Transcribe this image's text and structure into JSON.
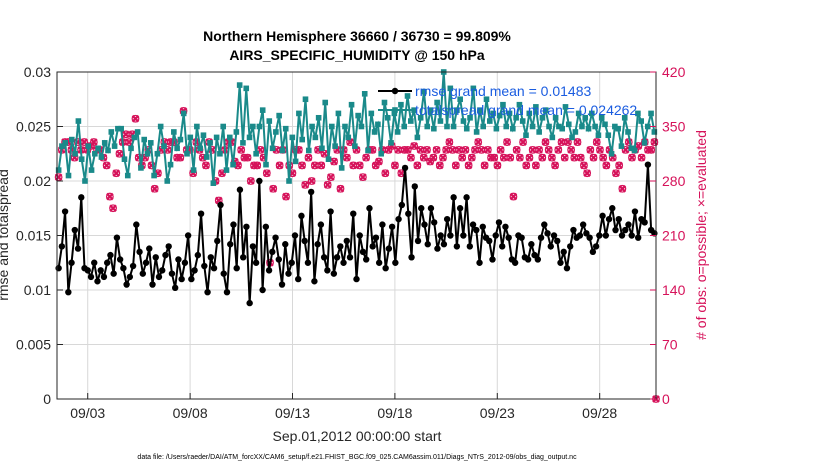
{
  "chart_data": {
    "type": "line",
    "title": [
      "Northern Hemisphere 36660 / 36730 = 99.809%",
      "AIRS_SPECIFIC_HUMIDITY @ 150 hPa"
    ],
    "xlabel": "Sep.01,2012 00:00:00 start",
    "ylabel": "rmse and totalspread",
    "ylabel2": "# of obs: o=possible; ×=evaluated",
    "footnote": "data file: /Users/raeder/DAI/ATM_forcXX/CAM6_setup/f.e21.FHIST_BGC.f09_025.CAM6assim.011/Diags_NTrS_2012-09/obs_diag_output.nc",
    "x_ticks": [
      "09/03",
      "09/08",
      "09/13",
      "09/18",
      "09/23",
      "09/28"
    ],
    "x_tick_days": [
      3,
      8,
      13,
      18,
      23,
      28
    ],
    "xlim_days": [
      1.5,
      30.75
    ],
    "ylim": [
      0,
      0.03
    ],
    "y_ticks": [
      "0",
      "0.005",
      "0.01",
      "0.015",
      "0.02",
      "0.025",
      "0.03"
    ],
    "ylim2": [
      0,
      420
    ],
    "y2_ticks": [
      "0",
      "70",
      "140",
      "210",
      "280",
      "350",
      "420"
    ],
    "grid": true,
    "legend_position": "top-right",
    "series": [
      {
        "name": "rmse grand mean = 0.01483",
        "color": "#000000",
        "axis": "left",
        "marker": "filled-circle",
        "values": [
          0.012,
          0.014,
          0.0172,
          0.0098,
          0.0125,
          0.0155,
          0.0138,
          0.0185,
          0.012,
          0.0118,
          0.0112,
          0.0125,
          0.0108,
          0.0118,
          0.0112,
          0.0125,
          0.0132,
          0.0115,
          0.0148,
          0.0128,
          0.012,
          0.0105,
          0.0112,
          0.0122,
          0.016,
          0.0135,
          0.0115,
          0.0125,
          0.0138,
          0.0105,
          0.013,
          0.0112,
          0.0118,
          0.0132,
          0.014,
          0.0115,
          0.0102,
          0.0128,
          0.011,
          0.0125,
          0.015,
          0.011,
          0.0118,
          0.0132,
          0.017,
          0.0122,
          0.0098,
          0.013,
          0.012,
          0.0145,
          0.0178,
          0.0115,
          0.0098,
          0.0142,
          0.016,
          0.012,
          0.0192,
          0.013,
          0.0158,
          0.0088,
          0.014,
          0.0125,
          0.02,
          0.01,
          0.0158,
          0.0118,
          0.0135,
          0.0148,
          0.0128,
          0.0105,
          0.0142,
          0.0115,
          0.0125,
          0.015,
          0.011,
          0.0168,
          0.0145,
          0.0125,
          0.019,
          0.0108,
          0.0142,
          0.016,
          0.013,
          0.0118,
          0.0172,
          0.0115,
          0.013,
          0.014,
          0.0125,
          0.0145,
          0.013,
          0.017,
          0.011,
          0.015,
          0.0135,
          0.0128,
          0.0175,
          0.014,
          0.0148,
          0.0125,
          0.016,
          0.012,
          0.0138,
          0.0158,
          0.0125,
          0.0165,
          0.0178,
          0.0212,
          0.017,
          0.013,
          0.0195,
          0.0145,
          0.0175,
          0.016,
          0.0142,
          0.0175,
          0.0162,
          0.0138,
          0.015,
          0.0142,
          0.0165,
          0.015,
          0.0185,
          0.014,
          0.0175,
          0.015,
          0.0185,
          0.014,
          0.016,
          0.0155,
          0.0125,
          0.0158,
          0.0148,
          0.0145,
          0.0128,
          0.015,
          0.0162,
          0.014,
          0.0158,
          0.0148,
          0.0128,
          0.0125,
          0.015,
          0.0148,
          0.013,
          0.0128,
          0.0142,
          0.0132,
          0.0128,
          0.0148,
          0.016,
          0.0152,
          0.014,
          0.015,
          0.0145,
          0.0125,
          0.0135,
          0.012,
          0.014,
          0.0155,
          0.0148,
          0.015,
          0.016,
          0.0152,
          0.0148,
          0.0135,
          0.014,
          0.015,
          0.0168,
          0.015,
          0.0165,
          0.0175,
          0.0155,
          0.0165,
          0.015,
          0.0155,
          0.016,
          0.015,
          0.0172,
          0.0148,
          0.0165,
          0.0162,
          0.0215,
          0.0155,
          0.0152
        ]
      },
      {
        "name": "totalspread grand mean = 0.024262",
        "color": "#1a8a8a",
        "axis": "left",
        "marker": "filled-square",
        "values": [
          0.021,
          0.0232,
          0.0235,
          0.0205,
          0.0238,
          0.0225,
          0.0255,
          0.022,
          0.02,
          0.0232,
          0.021,
          0.0225,
          0.023,
          0.0222,
          0.0235,
          0.0228,
          0.0245,
          0.0232,
          0.0248,
          0.0248,
          0.022,
          0.0205,
          0.023,
          0.024,
          0.0245,
          0.0212,
          0.0238,
          0.0225,
          0.0235,
          0.0205,
          0.0225,
          0.025,
          0.0232,
          0.02,
          0.0215,
          0.0245,
          0.023,
          0.0238,
          0.0262,
          0.0225,
          0.024,
          0.021,
          0.025,
          0.023,
          0.0242,
          0.0222,
          0.0235,
          0.0198,
          0.024,
          0.0225,
          0.025,
          0.021,
          0.024,
          0.0215,
          0.0245,
          0.0288,
          0.0235,
          0.0285,
          0.024,
          0.025,
          0.0225,
          0.025,
          0.0265,
          0.0215,
          0.0255,
          0.023,
          0.0245,
          0.026,
          0.0228,
          0.0248,
          0.02,
          0.024,
          0.0218,
          0.0262,
          0.0238,
          0.0275,
          0.0228,
          0.025,
          0.024,
          0.0258,
          0.023,
          0.0272,
          0.022,
          0.025,
          0.0232,
          0.0262,
          0.0212,
          0.025,
          0.024,
          0.027,
          0.0232,
          0.026,
          0.025,
          0.028,
          0.0228,
          0.0262,
          0.0245,
          0.0252,
          0.0225,
          0.0272,
          0.0258,
          0.0235,
          0.0262,
          0.0245,
          0.027,
          0.025,
          0.0278,
          0.0255,
          0.0265,
          0.024,
          0.0258,
          0.0282,
          0.025,
          0.0265,
          0.0248,
          0.0272,
          0.0255,
          0.03,
          0.025,
          0.0285,
          0.025,
          0.0265,
          0.0275,
          0.0255,
          0.0248,
          0.0258,
          0.0285,
          0.0245,
          0.0265,
          0.025,
          0.0275,
          0.0255,
          0.0262,
          0.0248,
          0.026,
          0.027,
          0.025,
          0.0262,
          0.0248,
          0.0258,
          0.027,
          0.0255,
          0.0242,
          0.0262,
          0.025,
          0.0268,
          0.0245,
          0.0258,
          0.0265,
          0.025,
          0.024,
          0.0258,
          0.025,
          0.0248,
          0.0268,
          0.0252,
          0.024,
          0.0245,
          0.0262,
          0.025,
          0.0258,
          0.0248,
          0.0262,
          0.025,
          0.0242,
          0.0258,
          0.0252,
          0.0242,
          0.0225,
          0.025,
          0.0248,
          0.0232,
          0.0258,
          0.0245,
          0.023,
          0.0228,
          0.0262,
          0.0255,
          0.0235,
          0.025,
          0.0262,
          0.0245
        ]
      },
      {
        "name": "# of obs possible",
        "color": "#d6125a",
        "axis": "right",
        "marker": "circle",
        "values": [
          285,
          320,
          330,
          330,
          320,
          310,
          330,
          320,
          330,
          320,
          325,
          330,
          320,
          320,
          310,
          300,
          260,
          245,
          290,
          315,
          330,
          340,
          330,
          340,
          360,
          310,
          300,
          310,
          320,
          300,
          270,
          290,
          320,
          330,
          320,
          330,
          330,
          310,
          310,
          370,
          320,
          320,
          290,
          330,
          320,
          310,
          300,
          330,
          320,
          280,
          255,
          290,
          320,
          330,
          330,
          305,
          300,
          320,
          310,
          310,
          280,
          300,
          300,
          320,
          310,
          290,
          175,
          270,
          320,
          300,
          320,
          260,
          300,
          290,
          320,
          320,
          300,
          275,
          310,
          280,
          300,
          320,
          300,
          315,
          275,
          285,
          305,
          320,
          270,
          320,
          310,
          330,
          300,
          320,
          300,
          285,
          310,
          320,
          320,
          300,
          305,
          320,
          290,
          320,
          325,
          300,
          320,
          290,
          320,
          320,
          310,
          325,
          300,
          320,
          310,
          320,
          305,
          310,
          320,
          300,
          310,
          320,
          330,
          320,
          300,
          320,
          310,
          320,
          300,
          310,
          320,
          330,
          320,
          300,
          320,
          310,
          310,
          300,
          320,
          310,
          330,
          310,
          260,
          320,
          310,
          330,
          300,
          310,
          320,
          300,
          320,
          310,
          330,
          320,
          310,
          300,
          320,
          330,
          310,
          330,
          320,
          310,
          330,
          310,
          300,
          290,
          320,
          310,
          330,
          320,
          310,
          300,
          320,
          310,
          290,
          300,
          270,
          320,
          330,
          310,
          320,
          325,
          310,
          330,
          320,
          320,
          330
        ]
      },
      {
        "name": "# of obs evaluated",
        "color": "#d6125a",
        "axis": "right",
        "marker": "x",
        "values": [
          285,
          320,
          330,
          330,
          320,
          310,
          330,
          320,
          330,
          320,
          325,
          330,
          320,
          320,
          310,
          300,
          260,
          245,
          290,
          315,
          330,
          340,
          330,
          340,
          360,
          310,
          300,
          310,
          320,
          300,
          270,
          290,
          320,
          330,
          320,
          330,
          330,
          310,
          310,
          370,
          320,
          320,
          290,
          330,
          320,
          310,
          300,
          330,
          320,
          280,
          255,
          290,
          320,
          330,
          330,
          305,
          300,
          320,
          310,
          310,
          280,
          300,
          300,
          320,
          310,
          290,
          175,
          270,
          320,
          300,
          320,
          260,
          300,
          290,
          320,
          320,
          300,
          275,
          310,
          280,
          300,
          320,
          300,
          315,
          275,
          285,
          305,
          320,
          270,
          320,
          310,
          330,
          300,
          320,
          300,
          285,
          310,
          320,
          320,
          300,
          305,
          320,
          290,
          320,
          325,
          300,
          320,
          290,
          320,
          320,
          310,
          325,
          300,
          320,
          310,
          320,
          305,
          310,
          320,
          300,
          310,
          320,
          330,
          320,
          300,
          320,
          310,
          320,
          300,
          310,
          320,
          330,
          320,
          300,
          320,
          310,
          310,
          300,
          320,
          310,
          330,
          310,
          260,
          320,
          310,
          330,
          300,
          310,
          320,
          300,
          320,
          310,
          330,
          320,
          310,
          300,
          320,
          330,
          310,
          330,
          320,
          310,
          330,
          310,
          300,
          290,
          320,
          310,
          330,
          320,
          310,
          300,
          320,
          310,
          290,
          300,
          270,
          320,
          330,
          310,
          320,
          325,
          310,
          330,
          320,
          320,
          330
        ]
      }
    ]
  }
}
